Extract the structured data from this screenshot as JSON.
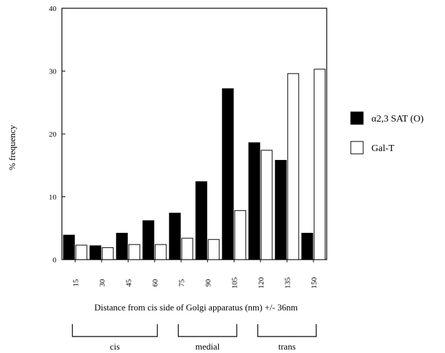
{
  "chart_data": {
    "type": "bar",
    "categories": [
      "15",
      "30",
      "45",
      "60",
      "75",
      "90",
      "105",
      "120",
      "135",
      "150"
    ],
    "series": [
      {
        "name": "α2,3 SAT (O)",
        "values": [
          3.9,
          2.2,
          4.2,
          6.2,
          7.4,
          12.4,
          27.2,
          18.6,
          15.8,
          4.2
        ],
        "fill": "#000000"
      },
      {
        "name": "Gal-T",
        "values": [
          2.3,
          1.9,
          2.4,
          2.4,
          3.4,
          3.2,
          7.8,
          17.4,
          29.6,
          30.3
        ],
        "fill": "#ffffff"
      }
    ],
    "yticks": [
      "0",
      "10",
      "20",
      "30",
      "40"
    ],
    "ylim": [
      0,
      40
    ],
    "ylabel": "% frequency",
    "xlabel": "Distance from cis side of Golgi apparatus (nm) +/- 36nm",
    "groups": [
      {
        "label": "cis",
        "from": "15",
        "to": "60"
      },
      {
        "label": "medial",
        "from": "75",
        "to": "105"
      },
      {
        "label": "trans",
        "from": "120",
        "to": "150"
      }
    ],
    "legend_position": "right",
    "grid": false
  }
}
